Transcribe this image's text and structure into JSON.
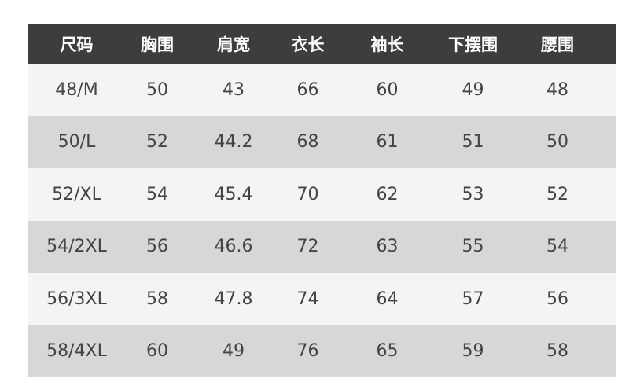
{
  "headers": [
    "尺码",
    "胸围",
    "肩宽",
    "衣长",
    "袖长",
    "下摆围",
    "腰围"
  ],
  "rows": [
    [
      "48/M",
      "50",
      "43",
      "66",
      "60",
      "49",
      "48"
    ],
    [
      "50/L",
      "52",
      "44.2",
      "68",
      "61",
      "51",
      "50"
    ],
    [
      "52/XL",
      "54",
      "45.4",
      "70",
      "62",
      "53",
      "52"
    ],
    [
      "54/2XL",
      "56",
      "46.6",
      "72",
      "63",
      "55",
      "54"
    ],
    [
      "56/3XL",
      "58",
      "47.8",
      "74",
      "64",
      "57",
      "56"
    ],
    [
      "58/4XL",
      "60",
      "49",
      "76",
      "65",
      "59",
      "58"
    ]
  ],
  "colors": {
    "header_bg": "#3d3d3d",
    "row_light": "#f4f4f4",
    "row_dark": "#d7d7d7",
    "text": "#444444"
  }
}
